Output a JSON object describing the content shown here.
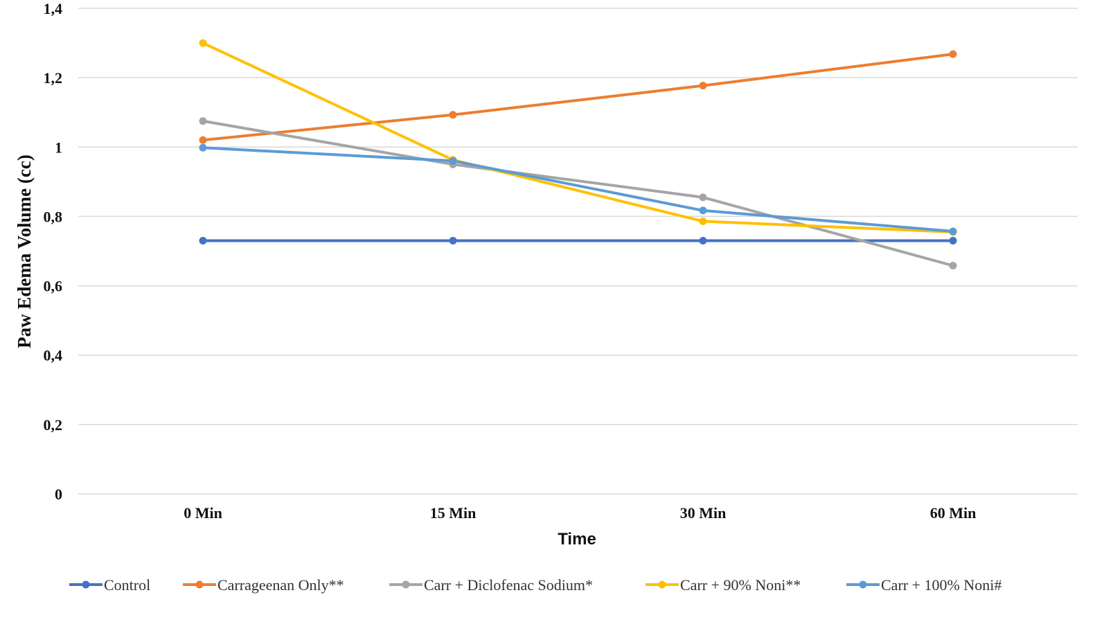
{
  "chart_data": {
    "type": "line",
    "title": "",
    "xlabel": "Time",
    "ylabel": "Paw Edema Volume (cc)",
    "categories": [
      "0 Min",
      "15 Min",
      "30 Min",
      "60 Min"
    ],
    "ylim": [
      0,
      1.4
    ],
    "yticks": [
      "0",
      "0,2",
      "0,4",
      "0,6",
      "0,8",
      "1",
      "1,2",
      "1,4"
    ],
    "ytick_values": [
      0,
      0.2,
      0.4,
      0.6,
      0.8,
      1.0,
      1.2,
      1.4
    ],
    "grid": true,
    "legend_position": "bottom",
    "series": [
      {
        "name": "Control",
        "color": "#4472C4",
        "values": [
          0.73,
          0.73,
          0.73,
          0.73
        ]
      },
      {
        "name": "Carrageenan Only**",
        "color": "#ED7D31",
        "values": [
          1.02,
          1.093,
          1.177,
          1.268
        ]
      },
      {
        "name": "Carr + Diclofenac Sodium*",
        "color": "#A5A5A5",
        "values": [
          1.075,
          0.95,
          0.855,
          0.658
        ]
      },
      {
        "name": "Carr + 90% Noni**",
        "color": "#FFC000",
        "values": [
          1.3,
          0.963,
          0.786,
          0.755
        ]
      },
      {
        "name": "Carr + 100% Noni#",
        "color": "#5B9BD5",
        "values": [
          0.998,
          0.96,
          0.817,
          0.757
        ]
      }
    ]
  }
}
